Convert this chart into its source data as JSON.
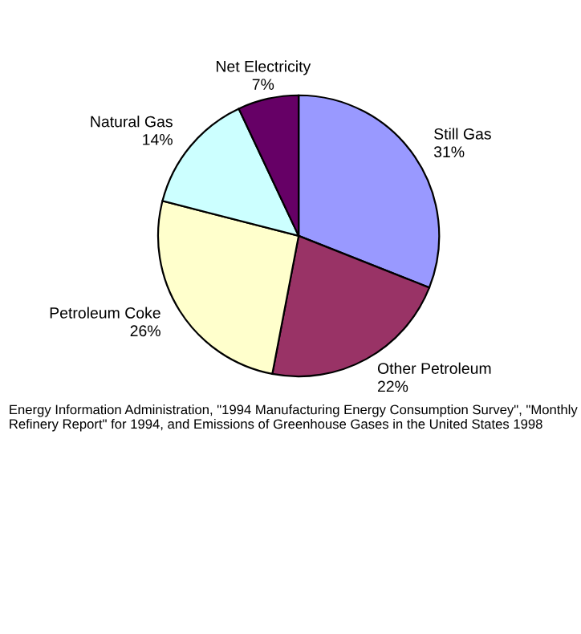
{
  "chart_data": {
    "type": "pie",
    "categories": [
      "Still Gas",
      "Other Petroleum",
      "Petroleum Coke",
      "Natural Gas",
      "Net Electricity"
    ],
    "values": [
      31,
      22,
      26,
      14,
      7
    ],
    "colors": [
      "#9999ff",
      "#993366",
      "#ffffcc",
      "#ccffff",
      "#660066"
    ],
    "value_labels": [
      "31%",
      "22%",
      "26%",
      "14%",
      "7%"
    ],
    "legend": false,
    "annotations": [
      "Energy Information Administration, \"1994 Manufacturing Energy Consumption Survey\", \"Monthly Refinery Report\" for 1994, and Emissions of Greenhouse Gases in the United States 1998"
    ]
  }
}
